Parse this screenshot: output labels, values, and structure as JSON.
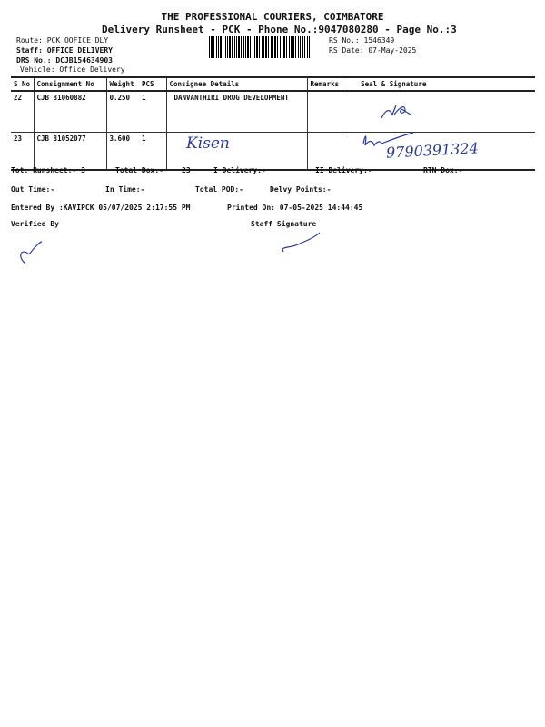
{
  "header": {
    "title": "THE PROFESSIONAL COURIERS, COIMBATORE",
    "subtitle": "Delivery Runsheet - PCK - Phone No.:9047080280 - Page No.:3",
    "route": "Route: PCK OOFICE DLY",
    "staff": "Staff: OFFICE DELIVERY",
    "drs": "DRS No.: DCJB154634903",
    "vehicle": "Vehicle: Office Delivery",
    "rs_no": "RS No.: 1546349",
    "rs_date": "RS Date: 07-May-2025"
  },
  "table": {
    "columns": [
      "S No",
      "Consignment No",
      "Weight",
      "PCS",
      "Consignee Details",
      "Remarks",
      "Seal & Signature"
    ],
    "rows": [
      {
        "sno": "22",
        "consignment": "CJB 81060882",
        "weight": "0.250",
        "pcs": "1",
        "consignee": "DANVANTHIRI DRUG DEVELOPMENT",
        "remarks": ""
      },
      {
        "sno": "23",
        "consignment": "CJB 81052077",
        "weight": "3.600",
        "pcs": "1",
        "consignee_handwritten": "Kisen",
        "remarks": "",
        "phone_handwritten": "9790391324"
      }
    ]
  },
  "summary": {
    "tot_runsheet": "Tot. Runsheet:- 3",
    "total_dox": "Total Dox:-",
    "total_dox_val": "23",
    "i_delivery": "I Delivery:-",
    "ii_delivery": "II Delivery:-",
    "rtn_dox": "RTN Dox:-",
    "out_time": "Out Time:-",
    "in_time": "In Time:-",
    "total_pod": "Total POD:-",
    "delvy_points": "Delvy Points:-",
    "entered_by": "Entered By :KAVIPCK 05/07/2025 2:17:55 PM",
    "printed_on": "Printed On: 07-05-2025 14:44:45",
    "verified_by": "Verified By",
    "staff_signature": "Staff Signature"
  },
  "colors": {
    "ink": "#2a3a9a"
  }
}
